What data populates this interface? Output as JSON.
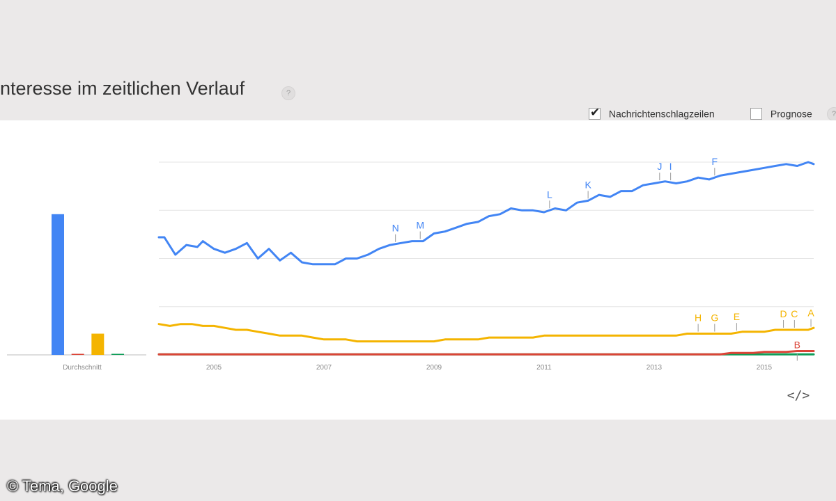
{
  "title": "nteresse im zeitlichen Verlauf",
  "help_glyph": "?",
  "options": [
    {
      "label": "Nachrichtenschlagzeilen",
      "checked": true
    },
    {
      "label": "Prognose",
      "checked": false
    }
  ],
  "embed_glyph": "</>",
  "copyright": "© Tema, Google",
  "chart_data": {
    "type": "line",
    "average_label": "Durchschnitt",
    "x_tick_labels": [
      "2005",
      "2007",
      "2009",
      "2011",
      "2013",
      "2015"
    ],
    "x_range": [
      2004.0,
      2015.9
    ],
    "y_range": [
      0,
      100
    ],
    "grid": true,
    "colors": {
      "blue": "#4285f4",
      "red": "#db4437",
      "yellow": "#f4b400",
      "green": "#0f9d58"
    },
    "averages": [
      {
        "color": "blue",
        "value": 73
      },
      {
        "color": "red",
        "value": 0.5
      },
      {
        "color": "yellow",
        "value": 11
      },
      {
        "color": "green",
        "value": 0.5
      }
    ],
    "series": [
      {
        "color": "blue",
        "points": [
          [
            2004.0,
            61
          ],
          [
            2004.1,
            61
          ],
          [
            2004.3,
            52
          ],
          [
            2004.5,
            57
          ],
          [
            2004.7,
            56
          ],
          [
            2004.8,
            59
          ],
          [
            2005.0,
            55
          ],
          [
            2005.2,
            53
          ],
          [
            2005.4,
            55
          ],
          [
            2005.6,
            58
          ],
          [
            2005.8,
            50
          ],
          [
            2006.0,
            55
          ],
          [
            2006.2,
            49
          ],
          [
            2006.4,
            53
          ],
          [
            2006.6,
            48
          ],
          [
            2006.8,
            47
          ],
          [
            2007.0,
            47
          ],
          [
            2007.2,
            47
          ],
          [
            2007.4,
            50
          ],
          [
            2007.6,
            50
          ],
          [
            2007.8,
            52
          ],
          [
            2008.0,
            55
          ],
          [
            2008.2,
            57
          ],
          [
            2008.4,
            58
          ],
          [
            2008.6,
            59
          ],
          [
            2008.8,
            59
          ],
          [
            2009.0,
            63
          ],
          [
            2009.2,
            64
          ],
          [
            2009.4,
            66
          ],
          [
            2009.6,
            68
          ],
          [
            2009.8,
            69
          ],
          [
            2010.0,
            72
          ],
          [
            2010.2,
            73
          ],
          [
            2010.4,
            76
          ],
          [
            2010.6,
            75
          ],
          [
            2010.8,
            75
          ],
          [
            2011.0,
            74
          ],
          [
            2011.2,
            76
          ],
          [
            2011.4,
            75
          ],
          [
            2011.6,
            79
          ],
          [
            2011.8,
            80
          ],
          [
            2012.0,
            83
          ],
          [
            2012.2,
            82
          ],
          [
            2012.4,
            85
          ],
          [
            2012.6,
            85
          ],
          [
            2012.8,
            88
          ],
          [
            2013.0,
            89
          ],
          [
            2013.2,
            90
          ],
          [
            2013.4,
            89
          ],
          [
            2013.6,
            90
          ],
          [
            2013.8,
            92
          ],
          [
            2014.0,
            91
          ],
          [
            2014.2,
            93
          ],
          [
            2014.4,
            94
          ],
          [
            2014.6,
            95
          ],
          [
            2014.8,
            96
          ],
          [
            2015.0,
            97
          ],
          [
            2015.2,
            98
          ],
          [
            2015.4,
            99
          ],
          [
            2015.6,
            98
          ],
          [
            2015.8,
            100
          ],
          [
            2015.9,
            99
          ]
        ]
      },
      {
        "color": "yellow",
        "points": [
          [
            2004.0,
            16
          ],
          [
            2004.2,
            15
          ],
          [
            2004.4,
            16
          ],
          [
            2004.6,
            16
          ],
          [
            2004.8,
            15
          ],
          [
            2005.0,
            15
          ],
          [
            2005.2,
            14
          ],
          [
            2005.4,
            13
          ],
          [
            2005.6,
            13
          ],
          [
            2005.8,
            12
          ],
          [
            2006.0,
            11
          ],
          [
            2006.2,
            10
          ],
          [
            2006.4,
            10
          ],
          [
            2006.6,
            10
          ],
          [
            2006.8,
            9
          ],
          [
            2007.0,
            8
          ],
          [
            2007.2,
            8
          ],
          [
            2007.4,
            8
          ],
          [
            2007.6,
            7
          ],
          [
            2007.8,
            7
          ],
          [
            2008.0,
            7
          ],
          [
            2008.2,
            7
          ],
          [
            2008.4,
            7
          ],
          [
            2008.6,
            7
          ],
          [
            2008.8,
            7
          ],
          [
            2009.0,
            7
          ],
          [
            2009.2,
            8
          ],
          [
            2009.4,
            8
          ],
          [
            2009.6,
            8
          ],
          [
            2009.8,
            8
          ],
          [
            2010.0,
            9
          ],
          [
            2010.2,
            9
          ],
          [
            2010.4,
            9
          ],
          [
            2010.6,
            9
          ],
          [
            2010.8,
            9
          ],
          [
            2011.0,
            10
          ],
          [
            2011.2,
            10
          ],
          [
            2011.4,
            10
          ],
          [
            2011.6,
            10
          ],
          [
            2011.8,
            10
          ],
          [
            2012.0,
            10
          ],
          [
            2012.2,
            10
          ],
          [
            2012.4,
            10
          ],
          [
            2012.6,
            10
          ],
          [
            2012.8,
            10
          ],
          [
            2013.0,
            10
          ],
          [
            2013.2,
            10
          ],
          [
            2013.4,
            10
          ],
          [
            2013.6,
            11
          ],
          [
            2013.8,
            11
          ],
          [
            2014.0,
            11
          ],
          [
            2014.2,
            11
          ],
          [
            2014.4,
            11
          ],
          [
            2014.6,
            12
          ],
          [
            2014.8,
            12
          ],
          [
            2015.0,
            12
          ],
          [
            2015.2,
            13
          ],
          [
            2015.4,
            13
          ],
          [
            2015.6,
            13
          ],
          [
            2015.8,
            13
          ],
          [
            2015.9,
            14
          ]
        ]
      },
      {
        "color": "red",
        "points": [
          [
            2004.0,
            0.3
          ],
          [
            2014.2,
            0.3
          ],
          [
            2014.4,
            1
          ],
          [
            2014.8,
            1
          ],
          [
            2015.0,
            1.5
          ],
          [
            2015.4,
            1.5
          ],
          [
            2015.6,
            2
          ],
          [
            2015.9,
            2
          ]
        ]
      },
      {
        "color": "green",
        "points": [
          [
            2004.0,
            0.3
          ],
          [
            2015.9,
            0.3
          ]
        ]
      }
    ],
    "annotations": [
      {
        "label": "N",
        "x": 2008.3,
        "series": "blue"
      },
      {
        "label": "M",
        "x": 2008.75,
        "series": "blue"
      },
      {
        "label": "L",
        "x": 2011.1,
        "series": "blue"
      },
      {
        "label": "K",
        "x": 2011.8,
        "series": "blue"
      },
      {
        "label": "J",
        "x": 2013.1,
        "series": "blue"
      },
      {
        "label": "I",
        "x": 2013.3,
        "series": "blue"
      },
      {
        "label": "F",
        "x": 2014.1,
        "series": "blue"
      },
      {
        "label": "H",
        "x": 2013.8,
        "series": "yellow"
      },
      {
        "label": "G",
        "x": 2014.1,
        "series": "yellow"
      },
      {
        "label": "E",
        "x": 2014.5,
        "series": "yellow"
      },
      {
        "label": "D",
        "x": 2015.35,
        "series": "yellow"
      },
      {
        "label": "C",
        "x": 2015.55,
        "series": "yellow"
      },
      {
        "label": "A",
        "x": 2015.85,
        "series": "yellow"
      },
      {
        "label": "B",
        "x": 2015.6,
        "series": "red"
      }
    ]
  }
}
